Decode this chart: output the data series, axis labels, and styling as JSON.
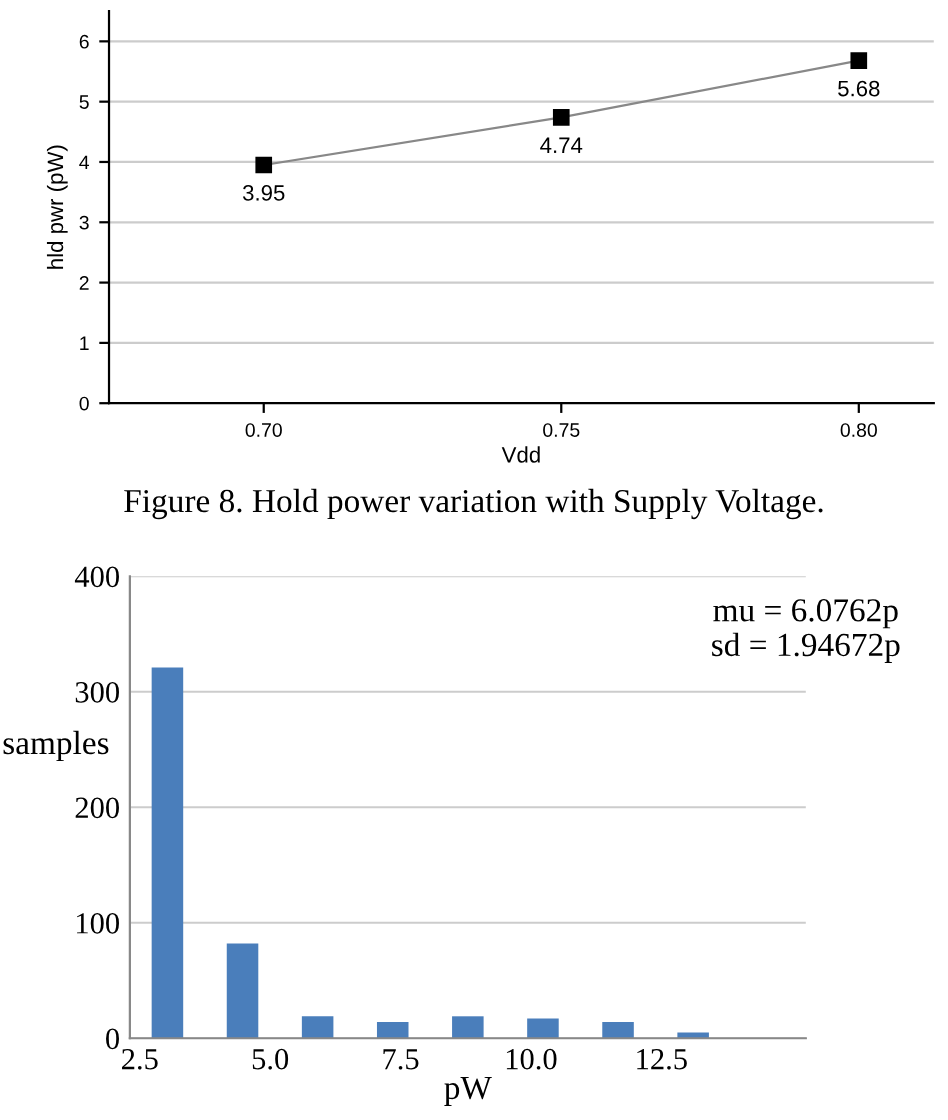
{
  "chart_data": [
    {
      "type": "line",
      "xlabel": "Vdd",
      "ylabel": "hld pwr (pW)",
      "x": [
        0.7,
        0.75,
        0.8
      ],
      "series": [
        {
          "color": "#888888",
          "values": [
            3.95,
            4.74,
            5.68
          ]
        }
      ],
      "marker": "square",
      "data_labels": true,
      "xlim": [
        0.674,
        0.8126
      ],
      "xticks": [
        {
          "value": 0.7,
          "label": "0.70"
        },
        {
          "value": 0.75,
          "label": "0.75"
        },
        {
          "value": 0.8,
          "label": "0.80"
        }
      ],
      "ylim": [
        0,
        6.5
      ],
      "yticks": [
        0,
        1,
        2,
        3,
        4,
        5,
        6
      ],
      "grid": "y",
      "annotations": [
        "Figure 8. Hold power variation with Supply Voltage."
      ]
    },
    {
      "type": "histogram",
      "xlabel": "pW",
      "ylabel": "samples",
      "color": "#4a7ebb",
      "bins": [
        2.31,
        3.75,
        5.19,
        6.63,
        8.07,
        9.51,
        10.95,
        12.39,
        13.83,
        15.27
      ],
      "values": [
        321,
        82,
        19,
        14,
        19,
        17,
        14,
        5,
        0
      ],
      "xlim": [
        2.31,
        15.27
      ],
      "xticks": [
        2.5,
        {
          "value": 5.0,
          "label": "5.0"
        },
        7.5,
        {
          "value": 10.0,
          "label": "10.0"
        },
        12.5
      ],
      "ylim": [
        0,
        400
      ],
      "yticks": [
        0,
        100,
        200,
        300,
        400
      ],
      "grid": "y",
      "annotations": [
        "mu = 6.0762p",
        "sd = 1.94672p"
      ]
    }
  ]
}
